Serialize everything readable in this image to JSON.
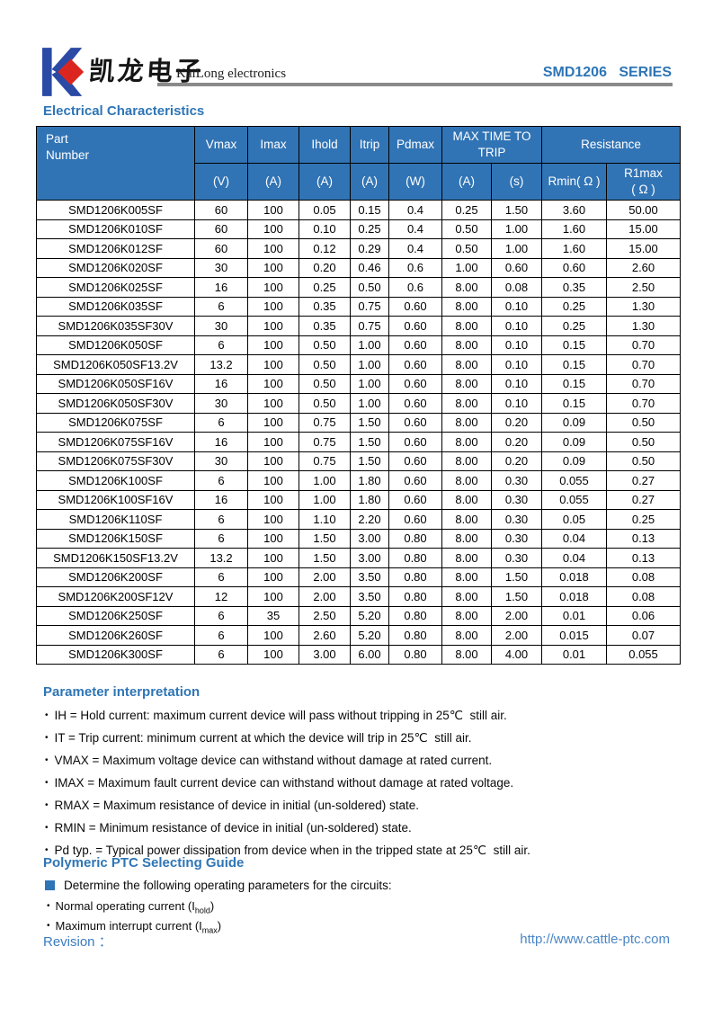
{
  "header": {
    "logo_chinese": "凯龙电子",
    "logo_english": "KaiLong electronics",
    "series": "SMD1206   SERIES"
  },
  "colors": {
    "accent_blue": "#2e75b6",
    "table_header_bg": "#3174b5",
    "logo_blue": "#2a4aa5",
    "logo_red": "#db261f",
    "rule_gray": "#8a8a8a",
    "link_blue": "#4a86c5"
  },
  "electrical": {
    "heading": "Electrical Characteristics",
    "table": {
      "header": {
        "part_line1": "Part",
        "part_line2": "Number",
        "vmax": "Vmax",
        "imax": "Imax",
        "ihold": "Ihold",
        "itrip": "Itrip",
        "pdmax": "Pdmax",
        "trip_line1": "MAX TIME TO",
        "trip_line2": "TRIP",
        "resistance": "Resistance",
        "units": [
          "(V)",
          "(A)",
          "(A)",
          "(A)",
          "(W)",
          "(A)",
          "(s)"
        ],
        "rmin": "Rmin( Ω )",
        "r1max_line1": "R1max",
        "r1max_line2": "( Ω )"
      },
      "rows": [
        [
          "SMD1206K005SF",
          "60",
          "100",
          "0.05",
          "0.15",
          "0.4",
          "0.25",
          "1.50",
          "3.60",
          "50.00"
        ],
        [
          "SMD1206K010SF",
          "60",
          "100",
          "0.10",
          "0.25",
          "0.4",
          "0.50",
          "1.00",
          "1.60",
          "15.00"
        ],
        [
          "SMD1206K012SF",
          "60",
          "100",
          "0.12",
          "0.29",
          "0.4",
          "0.50",
          "1.00",
          "1.60",
          "15.00"
        ],
        [
          "SMD1206K020SF",
          "30",
          "100",
          "0.20",
          "0.46",
          "0.6",
          "1.00",
          "0.60",
          "0.60",
          "2.60"
        ],
        [
          "SMD1206K025SF",
          "16",
          "100",
          "0.25",
          "0.50",
          "0.6",
          "8.00",
          "0.08",
          "0.35",
          "2.50"
        ],
        [
          "SMD1206K035SF",
          "6",
          "100",
          "0.35",
          "0.75",
          "0.60",
          "8.00",
          "0.10",
          "0.25",
          "1.30"
        ],
        [
          "SMD1206K035SF30V",
          "30",
          "100",
          "0.35",
          "0.75",
          "0.60",
          "8.00",
          "0.10",
          "0.25",
          "1.30"
        ],
        [
          "SMD1206K050SF",
          "6",
          "100",
          "0.50",
          "1.00",
          "0.60",
          "8.00",
          "0.10",
          "0.15",
          "0.70"
        ],
        [
          "SMD1206K050SF13.2V",
          "13.2",
          "100",
          "0.50",
          "1.00",
          "0.60",
          "8.00",
          "0.10",
          "0.15",
          "0.70"
        ],
        [
          "SMD1206K050SF16V",
          "16",
          "100",
          "0.50",
          "1.00",
          "0.60",
          "8.00",
          "0.10",
          "0.15",
          "0.70"
        ],
        [
          "SMD1206K050SF30V",
          "30",
          "100",
          "0.50",
          "1.00",
          "0.60",
          "8.00",
          "0.10",
          "0.15",
          "0.70"
        ],
        [
          "SMD1206K075SF",
          "6",
          "100",
          "0.75",
          "1.50",
          "0.60",
          "8.00",
          "0.20",
          "0.09",
          "0.50"
        ],
        [
          "SMD1206K075SF16V",
          "16",
          "100",
          "0.75",
          "1.50",
          "0.60",
          "8.00",
          "0.20",
          "0.09",
          "0.50"
        ],
        [
          "SMD1206K075SF30V",
          "30",
          "100",
          "0.75",
          "1.50",
          "0.60",
          "8.00",
          "0.20",
          "0.09",
          "0.50"
        ],
        [
          "SMD1206K100SF",
          "6",
          "100",
          "1.00",
          "1.80",
          "0.60",
          "8.00",
          "0.30",
          "0.055",
          "0.27"
        ],
        [
          "SMD1206K100SF16V",
          "16",
          "100",
          "1.00",
          "1.80",
          "0.60",
          "8.00",
          "0.30",
          "0.055",
          "0.27"
        ],
        [
          "SMD1206K110SF",
          "6",
          "100",
          "1.10",
          "2.20",
          "0.60",
          "8.00",
          "0.30",
          "0.05",
          "0.25"
        ],
        [
          "SMD1206K150SF",
          "6",
          "100",
          "1.50",
          "3.00",
          "0.80",
          "8.00",
          "0.30",
          "0.04",
          "0.13"
        ],
        [
          "SMD1206K150SF13.2V",
          "13.2",
          "100",
          "1.50",
          "3.00",
          "0.80",
          "8.00",
          "0.30",
          "0.04",
          "0.13"
        ],
        [
          "SMD1206K200SF",
          "6",
          "100",
          "2.00",
          "3.50",
          "0.80",
          "8.00",
          "1.50",
          "0.018",
          "0.08"
        ],
        [
          "SMD1206K200SF12V",
          "12",
          "100",
          "2.00",
          "3.50",
          "0.80",
          "8.00",
          "1.50",
          "0.018",
          "0.08"
        ],
        [
          "SMD1206K250SF",
          "6",
          "35",
          "2.50",
          "5.20",
          "0.80",
          "8.00",
          "2.00",
          "0.01",
          "0.06"
        ],
        [
          "SMD1206K260SF",
          "6",
          "100",
          "2.60",
          "5.20",
          "0.80",
          "8.00",
          "2.00",
          "0.015",
          "0.07"
        ],
        [
          "SMD1206K300SF",
          "6",
          "100",
          "3.00",
          "6.00",
          "0.80",
          "8.00",
          "4.00",
          "0.01",
          "0.055"
        ]
      ]
    }
  },
  "parameter_interpretation": {
    "heading": "Parameter interpretation",
    "items": [
      "IH = Hold current: maximum current device will pass without tripping in 25℃  still air.",
      "IT = Trip current: minimum current at which the device will trip in 25℃  still air.",
      "VMAX = Maximum voltage device can withstand without damage at rated current.",
      "IMAX = Maximum fault current device can withstand without damage at rated voltage.",
      "RMAX = Maximum resistance of device in initial (un-soldered) state.",
      "RMIN = Minimum resistance of device in initial (un-soldered) state.",
      "Pd typ. = Typical power dissipation from device when in the tripped state at 25℃  still air."
    ]
  },
  "selecting_guide": {
    "heading": "Polymeric PTC Selecting Guide",
    "intro": "Determine the following operating parameters for the circuits:",
    "items": [
      {
        "pre": "Normal operating current (I",
        "sub": "hold",
        "post": ")"
      },
      {
        "pre": "Maximum interrupt current (I",
        "sub": "max",
        "post": ")"
      }
    ]
  },
  "footer": {
    "revision": "Revision ：",
    "url": "http://www.cattle-ptc.com"
  }
}
